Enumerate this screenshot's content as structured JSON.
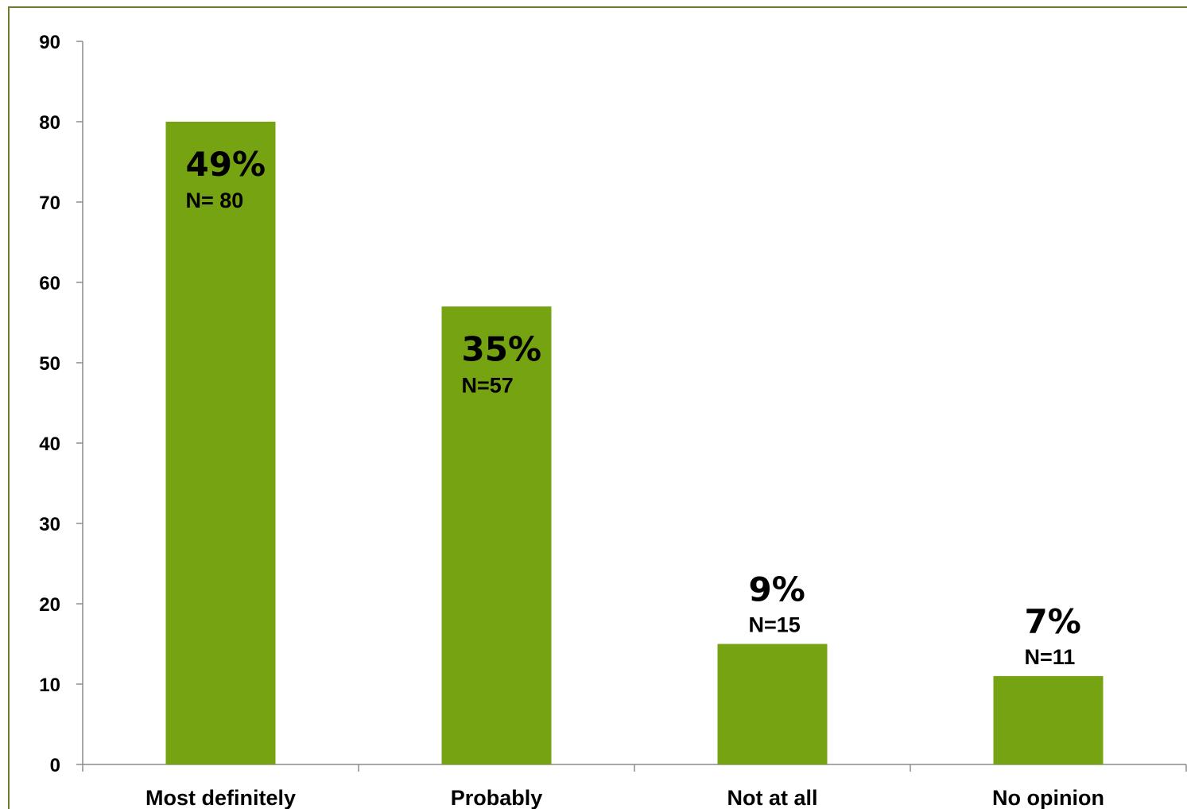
{
  "chart_data": {
    "type": "bar",
    "categories": [
      "Most definitely",
      "Probably",
      "Not at all",
      "No opinion"
    ],
    "values": [
      80,
      57,
      15,
      11
    ],
    "percent_labels": [
      "49%",
      "35%",
      "9%",
      "7%"
    ],
    "n_labels": [
      "N= 80",
      "N=57",
      "N=15",
      "N=11"
    ],
    "title": "",
    "xlabel": "",
    "ylabel": "",
    "ylim": [
      0,
      90
    ],
    "yticks": [
      0,
      10,
      20,
      30,
      40,
      50,
      60,
      70,
      80,
      90
    ],
    "grid": false,
    "legend": "none",
    "bar_color": "#76a312",
    "frame_color": "#6b7f2a"
  }
}
